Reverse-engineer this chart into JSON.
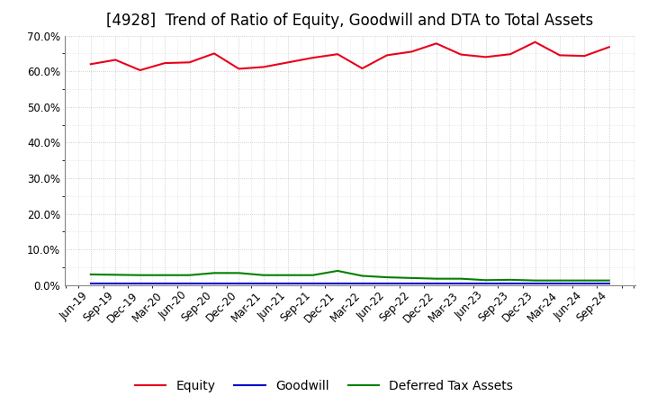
{
  "title": "[4928]  Trend of Ratio of Equity, Goodwill and DTA to Total Assets",
  "x_labels": [
    "Jun-19",
    "Sep-19",
    "Dec-19",
    "Mar-20",
    "Jun-20",
    "Sep-20",
    "Dec-20",
    "Mar-21",
    "Jun-21",
    "Sep-21",
    "Dec-21",
    "Mar-22",
    "Jun-22",
    "Sep-22",
    "Dec-22",
    "Mar-23",
    "Jun-23",
    "Sep-23",
    "Dec-23",
    "Mar-24",
    "Jun-24",
    "Sep-24"
  ],
  "equity": [
    0.62,
    0.632,
    0.603,
    0.623,
    0.625,
    0.65,
    0.607,
    0.612,
    0.625,
    0.638,
    0.648,
    0.608,
    0.645,
    0.655,
    0.678,
    0.647,
    0.64,
    0.648,
    0.682,
    0.645,
    0.643,
    0.668
  ],
  "goodwill": [
    0.005,
    0.005,
    0.005,
    0.005,
    0.005,
    0.005,
    0.005,
    0.005,
    0.005,
    0.005,
    0.005,
    0.005,
    0.005,
    0.005,
    0.005,
    0.005,
    0.005,
    0.005,
    0.005,
    0.005,
    0.005,
    0.005
  ],
  "dta": [
    0.03,
    0.029,
    0.028,
    0.028,
    0.028,
    0.034,
    0.034,
    0.028,
    0.028,
    0.028,
    0.04,
    0.026,
    0.022,
    0.02,
    0.018,
    0.018,
    0.014,
    0.015,
    0.013,
    0.013,
    0.013,
    0.013
  ],
  "equity_color": "#e8001c",
  "goodwill_color": "#0000cc",
  "dta_color": "#008000",
  "bg_color": "#ffffff",
  "plot_bg_color": "#ffffff",
  "grid_color": "#bbbbbb",
  "ylim": [
    0.0,
    0.7
  ],
  "yticks": [
    0.0,
    0.1,
    0.2,
    0.3,
    0.4,
    0.5,
    0.6,
    0.7
  ],
  "legend_labels": [
    "Equity",
    "Goodwill",
    "Deferred Tax Assets"
  ],
  "title_fontsize": 12,
  "tick_fontsize": 8.5,
  "legend_fontsize": 10
}
